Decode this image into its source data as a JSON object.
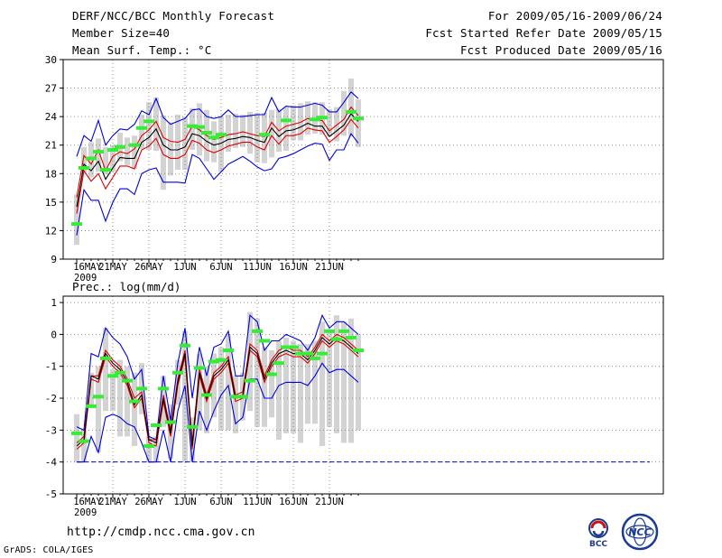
{
  "header": {
    "title": "DERF/NCC/BCC Monthly Forecast",
    "member_size": "Member Size=40",
    "variable": "Mean Surf. Temp.: °C",
    "forecast_period": "For 2009/05/16-2009/06/24",
    "started_refer": "Fcst Started Refer Date 2009/05/15",
    "produced": "Fcst Produced Date 2009/05/16"
  },
  "footer": {
    "url": "http://cmdp.ncc.cma.gov.cn",
    "grads": "GrADS: COLA/IGES",
    "logo_bcc": "BCC",
    "logo_ncc": "NCC"
  },
  "colors": {
    "ensemble_mean": "#000000",
    "spread_red": "#dd0000",
    "envelope_blue": "#0000dd",
    "box": "#d3d3d3",
    "observed": "#33ee33",
    "grid": "#777777"
  },
  "chart_data": [
    {
      "type": "line",
      "title": "Mean Surf. Temp.: °C",
      "ylim": [
        9,
        30
      ],
      "yticks": [
        9,
        12,
        15,
        18,
        21,
        24,
        27,
        30
      ],
      "x_tick_labels": [
        "16MAY",
        "21MAY",
        "26MAY",
        "1JUN",
        "6JUN",
        "11JUN",
        "16JUN",
        "21JUN"
      ],
      "x_year_label": "2009",
      "days": 40,
      "series": [
        {
          "name": "Max",
          "values": [
            11.5,
            16.3,
            15.2,
            15.2,
            13.0,
            15.0,
            16.4,
            16.4,
            15.8,
            18.0,
            18.4,
            18.6,
            17.1,
            17.1,
            17.1,
            17.0,
            20.0,
            19.6,
            18.5,
            17.4,
            18.2,
            19.0,
            19.4,
            19.8,
            19.3,
            18.7,
            18.3,
            18.5,
            19.6,
            19.8,
            20.1,
            20.5,
            20.9,
            21.2,
            21.1,
            19.4,
            20.5,
            20.5,
            22.2,
            21.2
          ]
        },
        {
          "name": "Min",
          "values": [
            19.8,
            22.0,
            21.4,
            23.6,
            21.0,
            22.0,
            22.7,
            22.6,
            23.2,
            24.6,
            24.2,
            25.9,
            23.9,
            23.2,
            23.5,
            23.8,
            24.7,
            24.8,
            24.0,
            23.8,
            24.0,
            24.7,
            24.0,
            24.0,
            24.1,
            24.2,
            24.2,
            26.0,
            24.5,
            25.1,
            25.0,
            25.0,
            25.2,
            25.4,
            25.2,
            24.5,
            24.5,
            25.5,
            26.6,
            25.9
          ]
        },
        {
          "name": "Mean",
          "values": [
            14.5,
            19.0,
            18.3,
            19.3,
            17.4,
            18.6,
            19.7,
            19.6,
            19.6,
            21.3,
            21.8,
            22.7,
            21.0,
            20.5,
            20.5,
            20.8,
            22.2,
            22.0,
            21.4,
            21.0,
            21.2,
            21.6,
            21.7,
            21.9,
            21.8,
            21.5,
            21.3,
            22.8,
            21.9,
            22.5,
            22.6,
            22.9,
            23.3,
            23.0,
            23.0,
            21.9,
            22.5,
            23.1,
            24.3,
            23.5
          ]
        },
        {
          "name": "Upper",
          "values": [
            15.5,
            19.9,
            19.0,
            20.5,
            18.3,
            19.8,
            20.3,
            20.1,
            20.6,
            22.0,
            22.6,
            23.5,
            21.8,
            21.4,
            21.3,
            21.6,
            23.0,
            22.6,
            22.0,
            21.6,
            21.8,
            22.1,
            22.2,
            22.4,
            22.2,
            22.0,
            21.9,
            23.4,
            22.5,
            23.0,
            23.2,
            23.4,
            23.8,
            23.6,
            23.6,
            22.5,
            23.1,
            23.7,
            25.0,
            24.1
          ]
        },
        {
          "name": "Lower",
          "values": [
            13.8,
            18.3,
            17.2,
            18.0,
            16.4,
            17.6,
            18.8,
            18.8,
            18.5,
            20.5,
            20.9,
            21.7,
            20.0,
            19.6,
            19.6,
            20.0,
            21.5,
            21.2,
            20.5,
            20.2,
            20.5,
            20.9,
            21.1,
            21.3,
            21.3,
            20.8,
            20.5,
            22.0,
            21.1,
            22.0,
            22.0,
            22.2,
            22.8,
            22.6,
            22.5,
            21.3,
            21.9,
            22.6,
            23.7,
            22.8
          ]
        },
        {
          "name": "Observed",
          "values": [
            12.7,
            18.6,
            19.6,
            20.3,
            18.4,
            20.5,
            20.8,
            null,
            21.0,
            22.8,
            23.5,
            null,
            null,
            null,
            null,
            null,
            23.0,
            22.9,
            22.3,
            21.8,
            22.1,
            null,
            null,
            null,
            null,
            null,
            22.1,
            null,
            null,
            23.6,
            null,
            null,
            null,
            23.7,
            23.9,
            null,
            null,
            null,
            24.5,
            23.8
          ]
        },
        {
          "name": "Box Low",
          "values": [
            10.5,
            18.2,
            17.6,
            18.2,
            17.9,
            18.2,
            19.3,
            18.9,
            18.5,
            20.6,
            20.5,
            20.4,
            16.3,
            17.8,
            18.4,
            18.4,
            20.5,
            19.9,
            19.3,
            19.2,
            18.2,
            20.3,
            20.7,
            20.8,
            20.1,
            19.2,
            19.1,
            19.7,
            20.3,
            20.4,
            21.5,
            21.5,
            22.1,
            22.2,
            22.1,
            21.9,
            21.4,
            22.0,
            21.9,
            20.8
          ]
        },
        {
          "name": "Box High",
          "values": [
            15.8,
            20.8,
            21.3,
            21.7,
            20.8,
            21.0,
            22.3,
            21.8,
            22.0,
            24.2,
            25.5,
            26.0,
            24.1,
            23.4,
            24.2,
            24.0,
            24.9,
            25.4,
            24.7,
            23.5,
            24.0,
            24.2,
            24.3,
            24.2,
            24.5,
            24.4,
            24.4,
            24.7,
            24.8,
            25.0,
            25.2,
            25.4,
            25.6,
            25.5,
            25.5,
            24.8,
            25.0,
            26.7,
            28.0,
            25.8
          ]
        }
      ]
    },
    {
      "type": "line",
      "title": "Prec.: log(mm/d)",
      "ylim": [
        -5,
        1.2
      ],
      "yticks": [
        -5,
        -4,
        -3,
        -2,
        -1,
        0,
        1
      ],
      "x_tick_labels": [
        "16MAY",
        "21MAY",
        "26MAY",
        "1JUN",
        "6JUN",
        "11JUN",
        "16JUN",
        "21JUN"
      ],
      "x_year_label": "2009",
      "days": 40,
      "series": [
        {
          "name": "Max",
          "values": [
            -2.9,
            -3.0,
            -0.6,
            -0.7,
            0.2,
            -0.1,
            -0.3,
            -0.7,
            -1.4,
            -1.1,
            -3.2,
            -3.3,
            -1.3,
            -2.7,
            -0.9,
            0.2,
            -2.0,
            -0.4,
            -1.3,
            -0.4,
            -0.3,
            0.1,
            -1.3,
            -1.3,
            0.6,
            0.4,
            -0.5,
            -0.2,
            -0.2,
            0.0,
            -0.1,
            -0.2,
            -0.5,
            -0.1,
            0.6,
            0.2,
            0.4,
            0.4,
            0.2,
            0.0
          ]
        },
        {
          "name": "Min",
          "values": [
            -4.0,
            -4.0,
            -3.2,
            -3.7,
            -2.6,
            -2.5,
            -2.6,
            -2.8,
            -2.9,
            -3.4,
            -4.0,
            -4.0,
            -3.0,
            -4.0,
            -2.4,
            -1.6,
            -4.0,
            -2.4,
            -3.0,
            -2.4,
            -1.9,
            -1.6,
            -2.8,
            -2.6,
            -1.4,
            -1.4,
            -2.0,
            -2.0,
            -1.6,
            -1.5,
            -1.5,
            -1.5,
            -1.6,
            -1.3,
            -0.9,
            -1.2,
            -1.1,
            -1.1,
            -1.3,
            -1.5
          ]
        },
        {
          "name": "Mean",
          "values": [
            -3.5,
            -3.3,
            -1.3,
            -1.4,
            -0.6,
            -0.9,
            -1.1,
            -1.5,
            -2.2,
            -1.9,
            -3.3,
            -3.4,
            -2.0,
            -3.1,
            -1.5,
            -0.6,
            -3.5,
            -1.2,
            -2.0,
            -1.3,
            -1.1,
            -0.8,
            -2.0,
            -1.9,
            -0.4,
            -0.6,
            -1.4,
            -0.9,
            -0.6,
            -0.5,
            -0.6,
            -0.6,
            -0.8,
            -0.5,
            -0.1,
            -0.3,
            -0.1,
            -0.2,
            -0.4,
            -0.6
          ]
        },
        {
          "name": "Upper",
          "values": [
            -3.4,
            -3.2,
            -1.3,
            -1.3,
            -0.5,
            -0.8,
            -1.0,
            -1.4,
            -2.0,
            -1.8,
            -3.3,
            -3.3,
            -1.9,
            -3.0,
            -1.4,
            -0.5,
            -3.4,
            -1.1,
            -1.9,
            -1.2,
            -1.0,
            -0.7,
            -1.9,
            -1.8,
            -0.3,
            -0.5,
            -1.3,
            -0.8,
            -0.5,
            -0.4,
            -0.5,
            -0.5,
            -0.7,
            -0.4,
            0.0,
            -0.2,
            0.0,
            -0.1,
            -0.3,
            -0.5
          ]
        },
        {
          "name": "Lower",
          "values": [
            -3.6,
            -3.4,
            -1.4,
            -1.5,
            -0.7,
            -1.0,
            -1.2,
            -1.6,
            -2.3,
            -2.0,
            -3.4,
            -3.5,
            -2.1,
            -3.2,
            -1.6,
            -0.7,
            -3.6,
            -1.3,
            -2.1,
            -1.4,
            -1.2,
            -0.9,
            -2.1,
            -2.0,
            -0.5,
            -0.7,
            -1.5,
            -1.0,
            -0.7,
            -0.6,
            -0.7,
            -0.7,
            -0.9,
            -0.6,
            -0.2,
            -0.4,
            -0.2,
            -0.3,
            -0.5,
            -0.7
          ]
        },
        {
          "name": "Observed",
          "values": [
            -3.1,
            -3.35,
            -2.25,
            -1.95,
            -0.75,
            -1.3,
            -1.2,
            -1.45,
            -2.1,
            -1.7,
            -3.5,
            -2.85,
            -1.7,
            -2.75,
            -1.2,
            -0.35,
            -2.9,
            -1.05,
            -1.9,
            -0.85,
            -0.8,
            -0.5,
            -1.95,
            -1.95,
            -1.45,
            0.1,
            -0.2,
            -1.25,
            -0.9,
            -0.4,
            -0.4,
            -0.6,
            -0.6,
            -0.75,
            -0.6,
            0.1,
            -0.15,
            0.1,
            -0.1,
            -0.5
          ]
        },
        {
          "name": "Box Low",
          "values": [
            -4.0,
            -4.0,
            -2.2,
            -3.7,
            -2.4,
            -2.4,
            -3.2,
            -3.2,
            -3.5,
            -2.5,
            -4.0,
            -4.0,
            -2.9,
            -3.9,
            -2.2,
            -4.0,
            -4.0,
            -3.0,
            -3.1,
            -2.6,
            -3.0,
            -3.0,
            -3.1,
            -2.7,
            -2.4,
            -2.9,
            -2.9,
            -2.6,
            -3.3,
            -3.1,
            -3.1,
            -3.4,
            -2.8,
            -2.8,
            -3.5,
            -2.9,
            -3.1,
            -3.4,
            -3.4,
            -3.0
          ]
        },
        {
          "name": "Box High",
          "values": [
            -2.5,
            -3.0,
            -1.2,
            -1.0,
            0.2,
            -1.1,
            -0.8,
            -1.0,
            -1.2,
            -0.9,
            -3.2,
            -3.2,
            -1.3,
            -2.2,
            -0.8,
            0.1,
            -2.6,
            -0.6,
            -1.0,
            -0.6,
            -0.4,
            0.0,
            -1.3,
            -1.2,
            0.7,
            0.5,
            -0.4,
            -0.5,
            -0.2,
            -0.1,
            -0.2,
            -0.3,
            -0.3,
            -0.2,
            0.4,
            0.1,
            0.6,
            0.4,
            0.5,
            0.0
          ]
        }
      ]
    }
  ]
}
